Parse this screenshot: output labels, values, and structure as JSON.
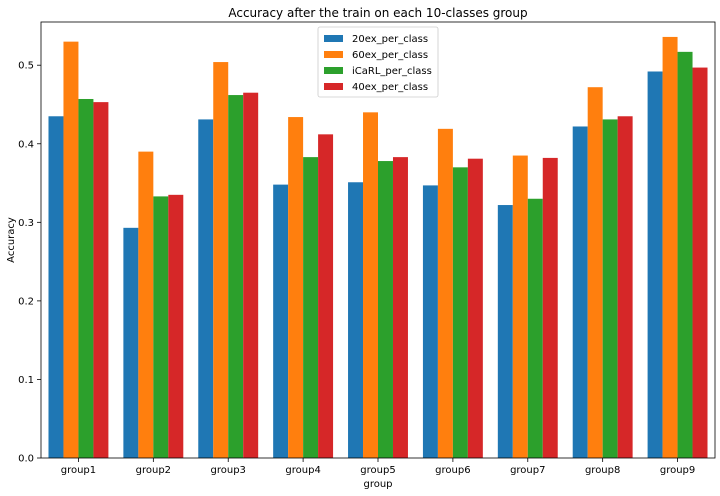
{
  "chart_data": {
    "type": "bar",
    "title": "Accuracy after the train on each 10-classes group",
    "xlabel": "group",
    "ylabel": "Accuracy",
    "categories": [
      "group1",
      "group2",
      "group3",
      "group4",
      "group5",
      "group6",
      "group7",
      "group8",
      "group9"
    ],
    "ylim": [
      0,
      0.555
    ],
    "yticks": [
      "0.0",
      "0.1",
      "0.2",
      "0.3",
      "0.4",
      "0.5"
    ],
    "legend_position": "top-center",
    "grid": false,
    "series": [
      {
        "name": "20ex_per_class",
        "color": "#1f77b4",
        "values": [
          0.435,
          0.293,
          0.431,
          0.348,
          0.351,
          0.347,
          0.322,
          0.422,
          0.492
        ]
      },
      {
        "name": "60ex_per_class",
        "color": "#ff7f0e",
        "values": [
          0.53,
          0.39,
          0.504,
          0.434,
          0.44,
          0.419,
          0.385,
          0.472,
          0.536
        ]
      },
      {
        "name": "iCaRL_per_class",
        "color": "#2ca02c",
        "values": [
          0.457,
          0.333,
          0.462,
          0.383,
          0.378,
          0.37,
          0.33,
          0.431,
          0.517
        ]
      },
      {
        "name": "40ex_per_class",
        "color": "#d62728",
        "values": [
          0.453,
          0.335,
          0.465,
          0.412,
          0.383,
          0.381,
          0.382,
          0.435,
          0.497
        ]
      }
    ]
  }
}
